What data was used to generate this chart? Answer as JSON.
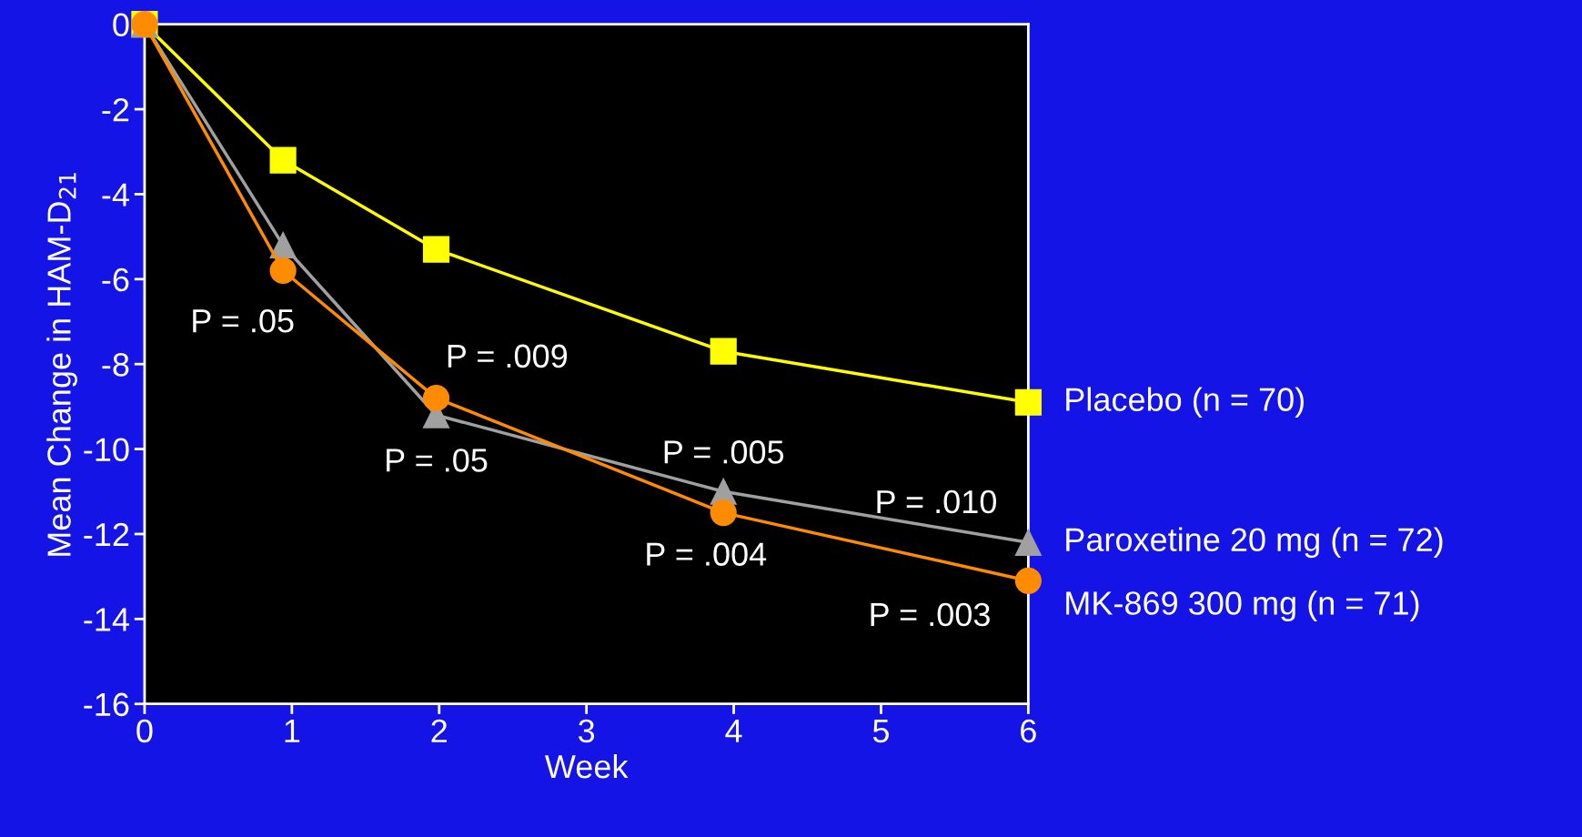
{
  "chart_data": {
    "type": "line",
    "xlabel": "Week",
    "ylabel": "Mean Change in HAM-D$_{21}$",
    "xlim": [
      0,
      6
    ],
    "xticks": [
      0,
      1,
      2,
      3,
      4,
      5,
      6
    ],
    "ylim": [
      -16,
      0
    ],
    "yticks": [
      -16,
      -14,
      -12,
      -10,
      -8,
      -6,
      -4,
      -2,
      0
    ],
    "grid": false,
    "legend": false,
    "line_style": "solid",
    "series": [
      {
        "name": "Placebo (n = 70)",
        "color": "#ffff00",
        "marker": "square",
        "x": [
          0,
          0.94,
          1.98,
          3.93,
          6
        ],
        "values": [
          0,
          -3.2,
          -5.3,
          -7.7,
          -8.9
        ]
      },
      {
        "name": "Paroxetine 20 mg (n = 72)",
        "color": "#a0a0a0",
        "marker": "triangle",
        "x": [
          0,
          0.94,
          1.98,
          3.93,
          6
        ],
        "values": [
          0,
          -5.2,
          -9.2,
          -11.0,
          -12.2
        ]
      },
      {
        "name": "MK-869 300 mg (n = 71)",
        "color": "#ff8c00",
        "marker": "circle",
        "x": [
          0,
          0.94,
          1.98,
          3.93,
          6
        ],
        "values": [
          0,
          -5.8,
          -8.8,
          -11.5,
          -13.1
        ]
      }
    ],
    "annotations": [
      {
        "text": "P = .05",
        "x": 0.94,
        "y": -5.8
      },
      {
        "text": "P = .009",
        "x": 1.98,
        "y": -8.8
      },
      {
        "text": "P = .05",
        "x": 1.98,
        "y": -9.2
      },
      {
        "text": "P = .005",
        "x": 3.93,
        "y": -11.0
      },
      {
        "text": "P = .010",
        "x": 6,
        "y": -12.2
      },
      {
        "text": "P = .004",
        "x": 3.93,
        "y": -11.5
      },
      {
        "text": "P = .003",
        "x": 6,
        "y": -13.1
      }
    ]
  }
}
